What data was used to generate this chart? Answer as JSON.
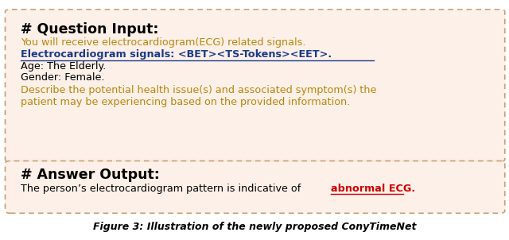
{
  "fig_width": 6.4,
  "fig_height": 3.02,
  "bg_color": "#ffffff",
  "box1_bg": "#fdf0e8",
  "box2_bg": "#fdf0e8",
  "box1_border": "#c8a078",
  "box2_border": "#c8a078",
  "header1": "# Question Input:",
  "header1_color": "#000000",
  "line1": "You will receive electrocardiogram(ECG) related signals.",
  "line1_color": "#b8860b",
  "line2": "Electrocardiogram signals: <BET><TS-Tokens><EET>.",
  "line2_color": "#1a3a8a",
  "line3": "Age: The Elderly.",
  "line3_color": "#000000",
  "line4": "Gender: Female.",
  "line4_color": "#000000",
  "line5a": "Describe the potential health issue(s) and associated symptom(s) the",
  "line5b": "patient may be experiencing based on the provided information.",
  "line5_color": "#b8860b",
  "header2": "# Answer Output:",
  "header2_color": "#000000",
  "ans_prefix": "The person’s electrocardiogram pattern is indicative of ",
  "ans_prefix_color": "#000000",
  "ans_highlight": "abnormal ECG.",
  "ans_highlight_color": "#cc0000",
  "caption": "Figure 3: Illustration of the newly proposed ConyTimeNet",
  "caption_color": "#000000"
}
